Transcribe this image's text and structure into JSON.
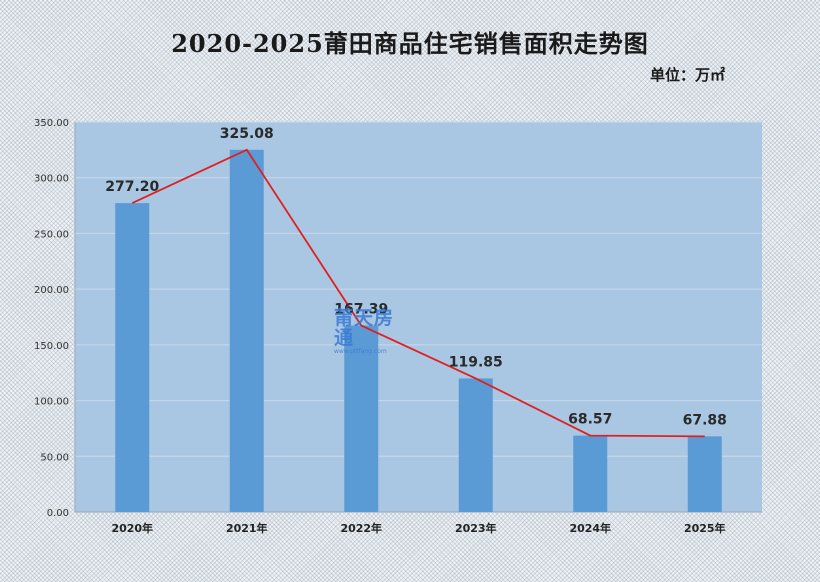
{
  "chart_data": {
    "type": "bar",
    "title": "2020-2025莆田商品住宅销售面积走势图",
    "unit_label": "单位：万㎡",
    "categories": [
      "2020年",
      "2021年",
      "2022年",
      "2023年",
      "2024年",
      "2025年"
    ],
    "values": [
      277.2,
      325.08,
      167.39,
      119.85,
      68.57,
      67.88
    ],
    "value_labels": [
      "277.20",
      "325.08",
      "167.39",
      "119.85",
      "68.57",
      "67.88"
    ],
    "ylim": [
      0,
      350
    ],
    "yticks": [
      "0.00",
      "50.00",
      "100.00",
      "150.00",
      "200.00",
      "250.00",
      "300.00",
      "350.00"
    ],
    "grid": true,
    "overlay_line": true,
    "colors": {
      "bar": "#5b9bd5",
      "line": "#e02020",
      "plot_bg": "#a9c7e2",
      "grid": "#c9d9ea"
    }
  },
  "watermark": {
    "text": "莆天房通",
    "sub": "www.pttfang.com"
  }
}
